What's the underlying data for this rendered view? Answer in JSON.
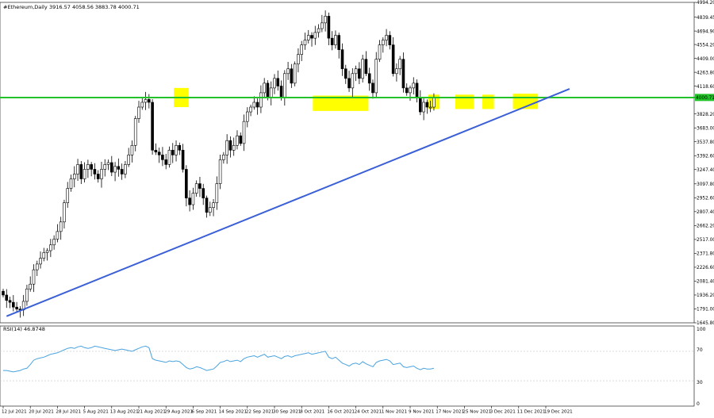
{
  "header": {
    "symbol": "#Ethereum,Daily",
    "ohlc": "3916.57 4058.56 3883.78 4000.71"
  },
  "rsi_panel": {
    "label": "RSI(14) 46.8748",
    "levels": [
      "100",
      "70",
      "30",
      "0"
    ]
  },
  "colors": {
    "background": "#ffffff",
    "candle": "#000000",
    "support": "#22c22a",
    "trendline": "#3a5fd6",
    "highlight": "#ffff00",
    "rsi": "#4aa3df",
    "axis": "#000000"
  },
  "chart_data": [
    {
      "type": "candlestick",
      "title": "#Ethereum,Daily",
      "y_ticks": [
        "4994.20",
        "4839.45",
        "4694.90",
        "4554.20",
        "4409.00",
        "4263.80",
        "4118.60",
        "4000.71",
        "3828.20",
        "3683.00",
        "3537.80",
        "3392.60",
        "3247.40",
        "3097.80",
        "2952.60",
        "2807.40",
        "2662.20",
        "2517.00",
        "2371.80",
        "2226.60",
        "2081.40",
        "1936.20",
        "1791.00",
        "1645.80"
      ],
      "x_ticks": [
        "12 Jul 2021",
        "20 Jul 2021",
        "28 Jul 2021",
        "5 Aug 2021",
        "13 Aug 2021",
        "21 Aug 2021",
        "29 Aug 2021",
        "6 Sep 2021",
        "14 Sep 2021",
        "22 Sep 2021",
        "30 Sep 2021",
        "8 Oct 2021",
        "16 Oct 2021",
        "24 Oct 2021",
        "1 Nov 2021",
        "9 Nov 2021",
        "17 Nov 2021",
        "25 Nov 2021",
        "3 Dec 2021",
        "11 Dec 2021",
        "19 Dec 2021"
      ],
      "ylim": [
        1645.8,
        4994.2
      ],
      "current_price": 4000.71,
      "grid": false,
      "close_series": [
        1936,
        1880,
        1860,
        1810,
        1790,
        1780,
        1870,
        2000,
        2050,
        2200,
        2260,
        2320,
        2380,
        2400,
        2460,
        2520,
        2600,
        2700,
        2900,
        3050,
        3150,
        3200,
        3300,
        3150,
        3250,
        3300,
        3250,
        3200,
        3150,
        3250,
        3300,
        3320,
        3220,
        3280,
        3250,
        3200,
        3300,
        3400,
        3500,
        3780,
        3900,
        3950,
        3980,
        3950,
        3450,
        3430,
        3400,
        3350,
        3300,
        3450,
        3400,
        3500,
        3450,
        3250,
        2950,
        2880,
        3000,
        3100,
        3050,
        2950,
        2800,
        2850,
        2900,
        3100,
        3350,
        3400,
        3550,
        3450,
        3500,
        3600,
        3520,
        3750,
        3850,
        3900,
        3950,
        3900,
        4050,
        4150,
        4000,
        4100,
        4200,
        4120,
        4000,
        4250,
        4300,
        4150,
        4350,
        4450,
        4550,
        4600,
        4650,
        4620,
        4680,
        4720,
        4780,
        4850,
        4620,
        4550,
        4650,
        4500,
        4300,
        4200,
        4100,
        4250,
        4300,
        4200,
        4400,
        4250,
        4150,
        4050,
        4400,
        4550,
        4600,
        4650,
        4550,
        4250,
        4300,
        4400,
        4100,
        4050,
        4100,
        4150,
        4000,
        3850,
        3950,
        3900,
        3900,
        4000
      ],
      "support_level": 4000,
      "trendline": [
        {
          "date": "13 Jul 2021",
          "price": 1715
        },
        {
          "date": "26 Dec 2021",
          "price": 4090
        }
      ],
      "highlight_zones": [
        {
          "start_date": "1 Sep 2021",
          "end_date": "4 Sep 2021",
          "price_low": 3900,
          "price_high": 4100
        },
        {
          "start_date": "12 Oct 2021",
          "end_date": "27 Oct 2021",
          "price_low": 3860,
          "price_high": 4020
        },
        {
          "start_date": "15 Nov 2021",
          "end_date": "17 Nov 2021",
          "price_low": 3880,
          "price_high": 4030
        },
        {
          "start_date": "23 Nov 2021",
          "end_date": "27 Nov 2021",
          "price_low": 3880,
          "price_high": 4030
        },
        {
          "start_date": "1 Dec 2021",
          "end_date": "3 Dec 2021",
          "price_low": 3880,
          "price_high": 4030
        },
        {
          "start_date": "10 Dec 2021",
          "end_date": "16 Dec 2021",
          "price_low": 3880,
          "price_high": 4040
        }
      ]
    },
    {
      "type": "line",
      "title": "RSI(14) 46.8748",
      "ylim": [
        0,
        100
      ],
      "levels": [
        70,
        30
      ],
      "values": [
        44,
        44,
        43,
        42,
        43,
        44,
        46,
        47,
        52,
        58,
        60,
        61,
        62,
        64,
        66,
        67,
        68,
        70,
        72,
        74,
        75,
        74,
        76,
        77,
        75,
        74,
        75,
        77,
        76,
        75,
        74,
        73,
        72,
        71,
        72,
        73,
        72,
        71,
        70,
        72,
        74,
        76,
        77,
        75,
        60,
        58,
        57,
        56,
        55,
        57,
        56,
        57,
        56,
        52,
        48,
        46,
        47,
        49,
        48,
        46,
        44,
        45,
        46,
        50,
        55,
        56,
        58,
        56,
        57,
        58,
        56,
        60,
        62,
        63,
        64,
        62,
        64,
        66,
        62,
        63,
        64,
        62,
        60,
        63,
        64,
        62,
        64,
        65,
        66,
        67,
        68,
        66,
        67,
        68,
        69,
        70,
        62,
        60,
        62,
        58,
        54,
        52,
        50,
        53,
        54,
        52,
        56,
        53,
        51,
        49,
        55,
        57,
        58,
        59,
        57,
        52,
        53,
        54,
        49,
        48,
        49,
        50,
        47,
        45,
        47,
        46,
        46,
        47
      ]
    }
  ]
}
